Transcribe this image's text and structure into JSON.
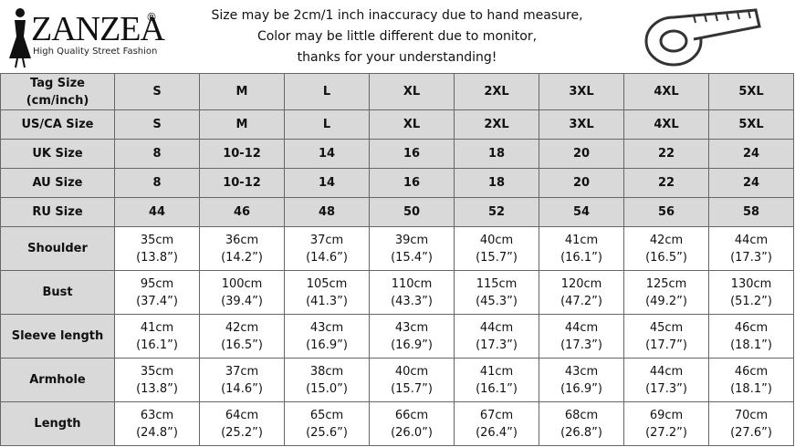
{
  "header": {
    "logo": "ZANZEA",
    "registered": "®",
    "tagline": "High Quality Street Fashion",
    "notice": [
      "Size may be 2cm/1 inch inaccuracy due to hand measure,",
      "Color may be little different due to monitor,",
      "thanks for your understanding!"
    ]
  },
  "table": {
    "head": {
      "label": [
        "Tag Size",
        "(cm/inch)"
      ],
      "sizes": [
        "S",
        "M",
        "L",
        "XL",
        "2XL",
        "3XL",
        "4XL",
        "5XL"
      ]
    },
    "rows": [
      {
        "label": "US/CA Size",
        "cells": [
          "S",
          "M",
          "L",
          "XL",
          "2XL",
          "3XL",
          "4XL",
          "5XL"
        ]
      },
      {
        "label": "UK Size",
        "cells": [
          "8",
          "10-12",
          "14",
          "16",
          "18",
          "20",
          "22",
          "24"
        ]
      },
      {
        "label": "AU Size",
        "cells": [
          "8",
          "10-12",
          "14",
          "16",
          "18",
          "20",
          "22",
          "24"
        ]
      },
      {
        "label": "RU Size",
        "cells": [
          "44",
          "46",
          "48",
          "50",
          "52",
          "54",
          "56",
          "58"
        ]
      },
      {
        "label": "Shoulder",
        "cells": [
          [
            "35cm",
            "(13.8”)"
          ],
          [
            "36cm",
            "(14.2”)"
          ],
          [
            "37cm",
            "(14.6”)"
          ],
          [
            "39cm",
            "(15.4”)"
          ],
          [
            "40cm",
            "(15.7”)"
          ],
          [
            "41cm",
            "(16.1”)"
          ],
          [
            "42cm",
            "(16.5”)"
          ],
          [
            "44cm",
            "(17.3”)"
          ]
        ]
      },
      {
        "label": "Bust",
        "cells": [
          [
            "95cm",
            "(37.4”)"
          ],
          [
            "100cm",
            "(39.4”)"
          ],
          [
            "105cm",
            "(41.3”)"
          ],
          [
            "110cm",
            "(43.3”)"
          ],
          [
            "115cm",
            "(45.3”)"
          ],
          [
            "120cm",
            "(47.2”)"
          ],
          [
            "125cm",
            "(49.2”)"
          ],
          [
            "130cm",
            "(51.2”)"
          ]
        ]
      },
      {
        "label": "Sleeve length",
        "cells": [
          [
            "41cm",
            "(16.1”)"
          ],
          [
            "42cm",
            "(16.5”)"
          ],
          [
            "43cm",
            "(16.9”)"
          ],
          [
            "43cm",
            "(16.9”)"
          ],
          [
            "44cm",
            "(17.3”)"
          ],
          [
            "44cm",
            "(17.3”)"
          ],
          [
            "45cm",
            "(17.7”)"
          ],
          [
            "46cm",
            "(18.1”)"
          ]
        ]
      },
      {
        "label": "Armhole",
        "cells": [
          [
            "35cm",
            "(13.8”)"
          ],
          [
            "37cm",
            "(14.6”)"
          ],
          [
            "38cm",
            "(15.0”)"
          ],
          [
            "40cm",
            "(15.7”)"
          ],
          [
            "41cm",
            "(16.1”)"
          ],
          [
            "43cm",
            "(16.9”)"
          ],
          [
            "44cm",
            "(17.3”)"
          ],
          [
            "46cm",
            "(18.1”)"
          ]
        ]
      },
      {
        "label": "Length",
        "cells": [
          [
            "63cm",
            "(24.8”)"
          ],
          [
            "64cm",
            "(25.2”)"
          ],
          [
            "65cm",
            "(25.6”)"
          ],
          [
            "66cm",
            "(26.0”)"
          ],
          [
            "67cm",
            "(26.4”)"
          ],
          [
            "68cm",
            "(26.8”)"
          ],
          [
            "69cm",
            "(27.2”)"
          ],
          [
            "70cm",
            "(27.6”)"
          ]
        ]
      }
    ]
  }
}
